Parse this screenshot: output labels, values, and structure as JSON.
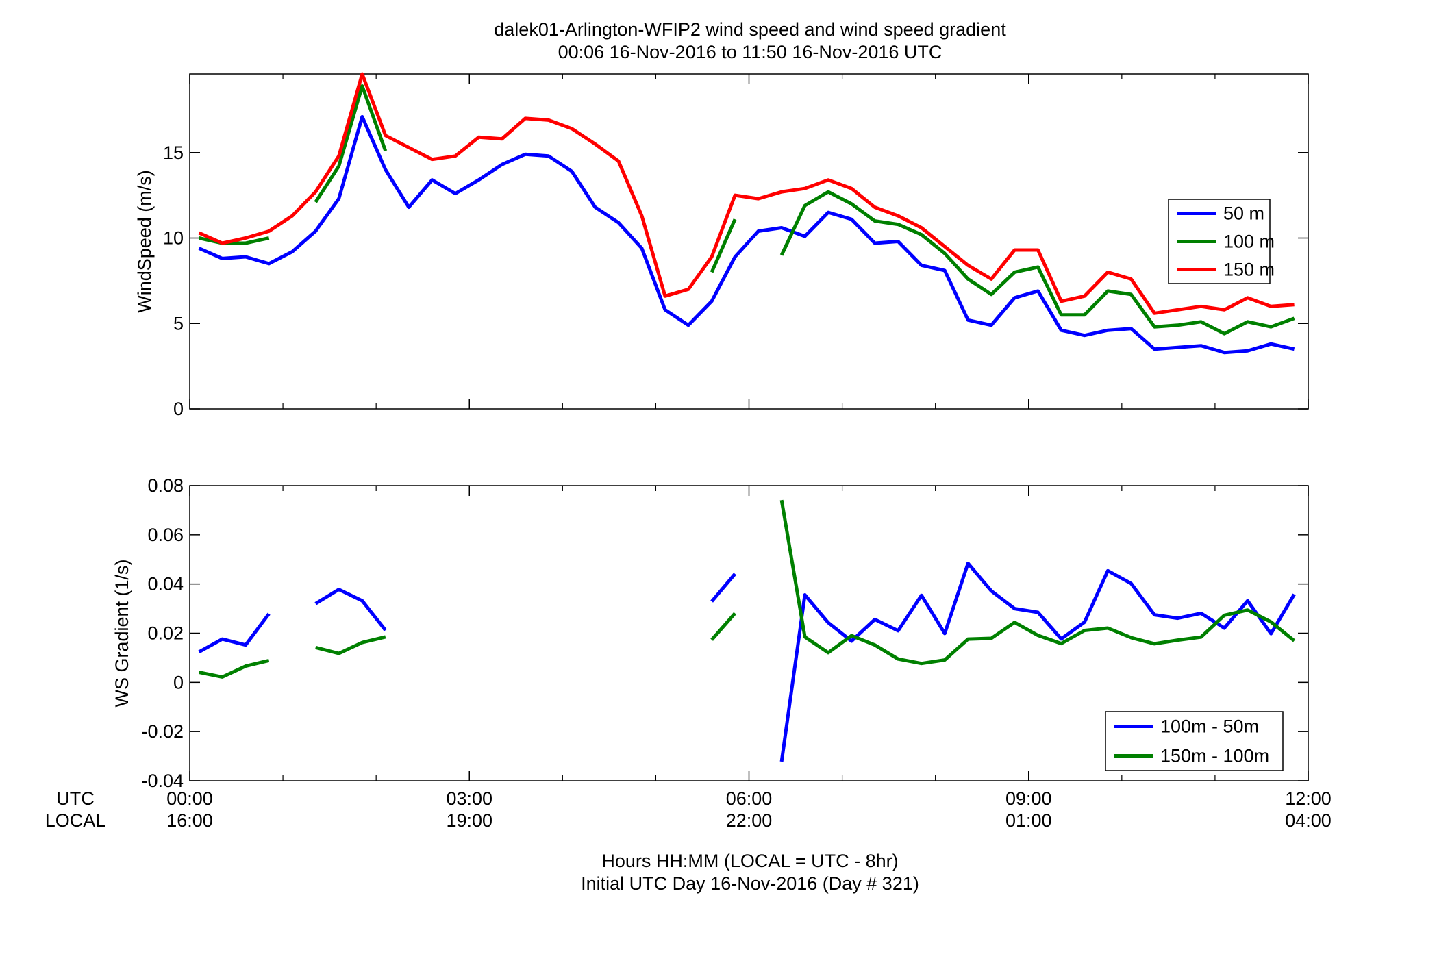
{
  "figure": {
    "title_line1": "dalek01-Arlington-WFIP2  wind speed and wind speed gradient",
    "title_line2": "00:06 16-Nov-2016 to 11:50 16-Nov-2016  UTC",
    "utc_row_label": "UTC",
    "local_row_label": "LOCAL",
    "xlabel_line1": "Hours HH:MM  (LOCAL = UTC - 8hr)",
    "xlabel_line2": "Initial UTC Day 16-Nov-2016 (Day # 321)"
  },
  "x_ticks": [
    {
      "hour": 0,
      "utc": "00:00",
      "local": "16:00"
    },
    {
      "hour": 3,
      "utc": "03:00",
      "local": "19:00"
    },
    {
      "hour": 6,
      "utc": "06:00",
      "local": "22:00"
    },
    {
      "hour": 9,
      "utc": "09:00",
      "local": "01:00"
    },
    {
      "hour": 12,
      "utc": "12:00",
      "local": "04:00"
    }
  ],
  "chart_data": [
    {
      "type": "line",
      "ylabel": "WindSpeed (m/s)",
      "xlim": [
        0,
        12
      ],
      "ylim": [
        0,
        19.6
      ],
      "yticks": [
        0,
        5,
        10,
        15
      ],
      "ytick_labels": [
        "0",
        "5",
        "10",
        "15"
      ],
      "legend_position": "right",
      "x": [
        0.1,
        0.35,
        0.6,
        0.85,
        1.1,
        1.35,
        1.6,
        1.85,
        2.1,
        2.35,
        2.6,
        2.85,
        3.1,
        3.35,
        3.6,
        3.85,
        4.1,
        4.35,
        4.6,
        4.85,
        5.1,
        5.35,
        5.6,
        5.85,
        6.1,
        6.35,
        6.6,
        6.85,
        7.1,
        7.35,
        7.6,
        7.85,
        8.1,
        8.35,
        8.6,
        8.85,
        9.1,
        9.35,
        9.6,
        9.85,
        10.1,
        10.35,
        10.6,
        10.85,
        11.1,
        11.35,
        11.6,
        11.85
      ],
      "series": [
        {
          "name": "50 m",
          "color": "#0000ff",
          "values": [
            9.4,
            8.8,
            8.9,
            8.5,
            9.2,
            10.4,
            12.3,
            17.1,
            14.0,
            11.8,
            13.4,
            12.6,
            13.4,
            14.3,
            14.9,
            14.8,
            13.9,
            11.8,
            10.9,
            9.4,
            5.8,
            4.9,
            6.3,
            8.9,
            10.4,
            10.6,
            10.1,
            11.5,
            11.1,
            9.7,
            9.8,
            8.4,
            8.1,
            5.2,
            4.9,
            6.5,
            6.9,
            4.6,
            4.3,
            4.6,
            4.7,
            3.5,
            3.6,
            3.7,
            3.3,
            3.4,
            3.8,
            3.5
          ]
        },
        {
          "name": "100 m",
          "color": "#008000",
          "values": [
            10.0,
            9.7,
            9.7,
            10.0,
            null,
            12.1,
            14.2,
            18.9,
            15.1,
            null,
            null,
            null,
            null,
            null,
            null,
            null,
            null,
            null,
            null,
            null,
            null,
            null,
            8.0,
            11.1,
            null,
            9.0,
            11.9,
            12.7,
            12.0,
            11.0,
            10.8,
            10.2,
            9.1,
            7.6,
            6.7,
            8.0,
            8.3,
            5.5,
            5.5,
            6.9,
            6.7,
            4.8,
            4.9,
            5.1,
            4.4,
            5.1,
            4.8,
            5.3
          ]
        },
        {
          "name": "150 m",
          "color": "#ff0000",
          "values": [
            10.3,
            9.7,
            10.0,
            10.4,
            11.3,
            12.7,
            14.8,
            19.6,
            16.0,
            15.3,
            14.6,
            14.8,
            15.9,
            15.8,
            17.0,
            16.9,
            16.4,
            15.5,
            14.5,
            11.3,
            6.6,
            7.0,
            8.9,
            12.5,
            12.3,
            12.7,
            12.9,
            13.4,
            12.9,
            11.8,
            11.3,
            10.6,
            9.5,
            8.4,
            7.6,
            9.3,
            9.3,
            6.3,
            6.6,
            8.0,
            7.6,
            5.6,
            5.8,
            6.0,
            5.8,
            6.5,
            6.0,
            6.1
          ]
        }
      ]
    },
    {
      "type": "line",
      "ylabel": "WS Gradient (1/s)",
      "xlim": [
        0,
        12
      ],
      "ylim": [
        -0.04,
        0.08
      ],
      "yticks": [
        -0.04,
        -0.02,
        0,
        0.02,
        0.04,
        0.06,
        0.08
      ],
      "ytick_labels": [
        "-0.04",
        "-0.02",
        "0",
        "0.02",
        "0.04",
        "0.06",
        "0.08"
      ],
      "legend_position": "bottom-right",
      "x": [
        0.1,
        0.35,
        0.6,
        0.85,
        1.1,
        1.35,
        1.6,
        1.85,
        2.1,
        2.35,
        2.6,
        2.85,
        3.1,
        3.35,
        3.6,
        3.85,
        4.1,
        4.35,
        4.6,
        4.85,
        5.1,
        5.35,
        5.6,
        5.85,
        6.1,
        6.35,
        6.6,
        6.85,
        7.1,
        7.35,
        7.6,
        7.85,
        8.1,
        8.35,
        8.6,
        8.85,
        9.1,
        9.35,
        9.6,
        9.85,
        10.1,
        10.35,
        10.6,
        10.85,
        11.1,
        11.35,
        11.6,
        11.85
      ],
      "series": [
        {
          "name": "100m - 50m",
          "color": "#0000ff",
          "values": [
            0.0124,
            0.0176,
            0.0152,
            0.0279,
            null,
            0.032,
            0.0378,
            0.0332,
            0.0212,
            null,
            null,
            null,
            null,
            null,
            null,
            null,
            null,
            null,
            null,
            null,
            null,
            null,
            0.0329,
            0.0441,
            null,
            -0.0322,
            0.0356,
            0.0243,
            0.0168,
            0.0256,
            0.021,
            0.0354,
            0.0199,
            0.0484,
            0.0372,
            0.03,
            0.0285,
            0.0177,
            0.0245,
            0.0454,
            0.0402,
            0.0275,
            0.0261,
            0.0281,
            0.0221,
            0.0332,
            0.0198,
            0.0358
          ]
        },
        {
          "name": "150m - 100m",
          "color": "#008000",
          "values": [
            0.0041,
            0.0022,
            0.0066,
            0.0089,
            null,
            0.0142,
            0.0118,
            0.0162,
            0.0185,
            null,
            null,
            null,
            null,
            null,
            null,
            null,
            null,
            null,
            null,
            null,
            null,
            null,
            0.0173,
            0.0281,
            null,
            0.0741,
            0.0185,
            0.0121,
            0.019,
            0.0152,
            0.0095,
            0.0077,
            0.0091,
            0.0176,
            0.0179,
            0.0244,
            0.0191,
            0.0158,
            0.0211,
            0.0221,
            0.0182,
            0.0157,
            0.0172,
            0.0184,
            0.0273,
            0.0294,
            0.0246,
            0.0169
          ]
        }
      ]
    }
  ]
}
